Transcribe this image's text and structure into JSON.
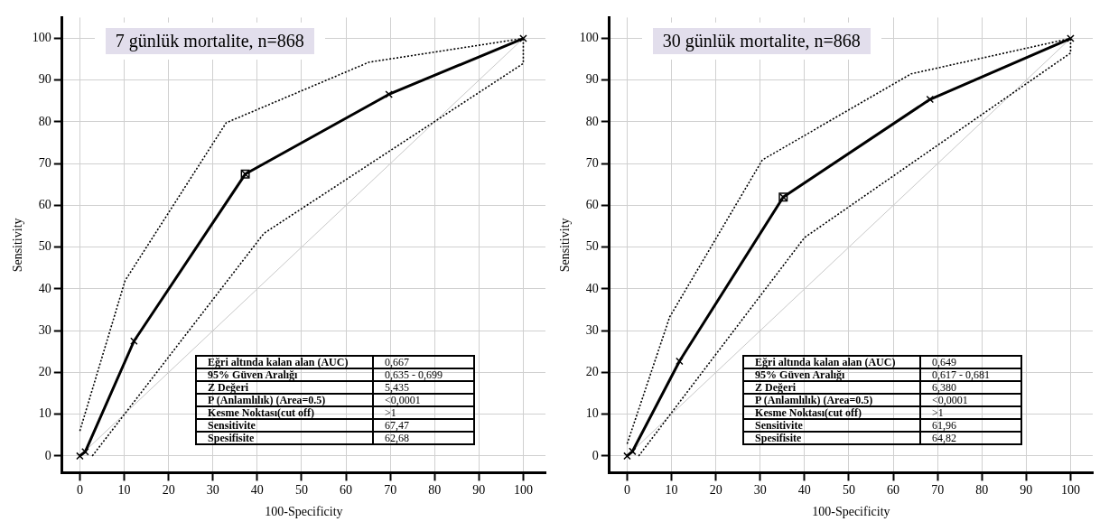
{
  "chart_data": [
    {
      "type": "line",
      "title": "7 günlük mortalite, n=868",
      "xlabel": "100-Specificity",
      "ylabel": "Sensitivity",
      "xlim": [
        -4,
        105
      ],
      "ylim": [
        -4,
        105
      ],
      "xticks": [
        0,
        10,
        20,
        30,
        40,
        50,
        60,
        70,
        80,
        90,
        100
      ],
      "yticks": [
        0,
        10,
        20,
        30,
        40,
        50,
        60,
        70,
        80,
        90,
        100
      ],
      "grid": true,
      "legend": false,
      "series": [
        {
          "x": [
            0,
            1.2,
            12.2,
            37.3,
            69.7,
            100
          ],
          "values": [
            0,
            1,
            27.5,
            67.5,
            86.6,
            100
          ],
          "color": "#000000",
          "marker": "cross",
          "line_style": "solid"
        },
        {
          "x": [
            0,
            10.2,
            33,
            65.2,
            100
          ],
          "values": [
            6,
            42,
            79.8,
            94.3,
            100
          ],
          "color": "#000000",
          "marker": "none",
          "line_style": "dotted"
        },
        {
          "x": [
            2.8,
            41.5,
            100,
            100
          ],
          "values": [
            0,
            53.3,
            94,
            100
          ],
          "color": "#000000",
          "marker": "none",
          "line_style": "dotted"
        },
        {
          "x": [
            0,
            100
          ],
          "values": [
            0,
            100
          ],
          "color": "#c8c8c8",
          "marker": "none",
          "line_style": "solid"
        },
        {
          "type": "scatter",
          "x": [
            37.3
          ],
          "values": [
            67.5
          ],
          "color": "#000000",
          "marker": "square"
        }
      ],
      "annotations": [
        "Eğri altında kalan alan (AUC)",
        "0,667",
        "95% Güven Aralığı",
        "0,635 - 0,699",
        "Z Değeri",
        "5,435",
        "P (Anlamlılık)  (Area=0.5)",
        "<0,0001",
        "Kesme Noktası(cut off)",
        ">1",
        "Sensitivite",
        "67,47",
        "Spesifisite",
        "62,68"
      ]
    },
    {
      "type": "line",
      "title": "30 günlük mortalite, n=868",
      "xlabel": "100-Specificity",
      "ylabel": "Sensitivity",
      "xlim": [
        -4,
        105
      ],
      "ylim": [
        -4,
        105
      ],
      "xticks": [
        0,
        10,
        20,
        30,
        40,
        50,
        60,
        70,
        80,
        90,
        100
      ],
      "yticks": [
        0,
        10,
        20,
        30,
        40,
        50,
        60,
        70,
        80,
        90,
        100
      ],
      "grid": true,
      "legend": false,
      "series": [
        {
          "x": [
            0,
            1.2,
            11.8,
            35.2,
            68.3,
            100
          ],
          "values": [
            0,
            1.1,
            22.7,
            62,
            85.4,
            100
          ],
          "color": "#000000",
          "marker": "cross",
          "line_style": "solid"
        },
        {
          "x": [
            0,
            9.6,
            30.5,
            64,
            100
          ],
          "values": [
            2.9,
            33.3,
            70.9,
            91.5,
            100
          ],
          "color": "#000000",
          "marker": "none",
          "line_style": "dotted"
        },
        {
          "x": [
            2.6,
            40,
            100,
            100
          ],
          "values": [
            0,
            52.3,
            96.5,
            100
          ],
          "color": "#000000",
          "marker": "none",
          "line_style": "dotted"
        },
        {
          "x": [
            0,
            100
          ],
          "values": [
            0,
            100
          ],
          "color": "#c8c8c8",
          "marker": "none",
          "line_style": "solid"
        },
        {
          "type": "scatter",
          "x": [
            35.2
          ],
          "values": [
            62
          ],
          "color": "#000000",
          "marker": "square"
        }
      ],
      "annotations": [
        "Eğri altında kalan alan (AUC)",
        "0,649",
        "95% Güven Aralığı",
        "0,617 - 0,681",
        "Z Değeri",
        "6,380",
        "P (Anlamlılık)  (Area=0.5)",
        "<0,0001",
        "Kesme Noktası(cut off)",
        ">1",
        "Sensitivite",
        "61,96",
        "Spesifisite",
        "64,82"
      ]
    }
  ]
}
